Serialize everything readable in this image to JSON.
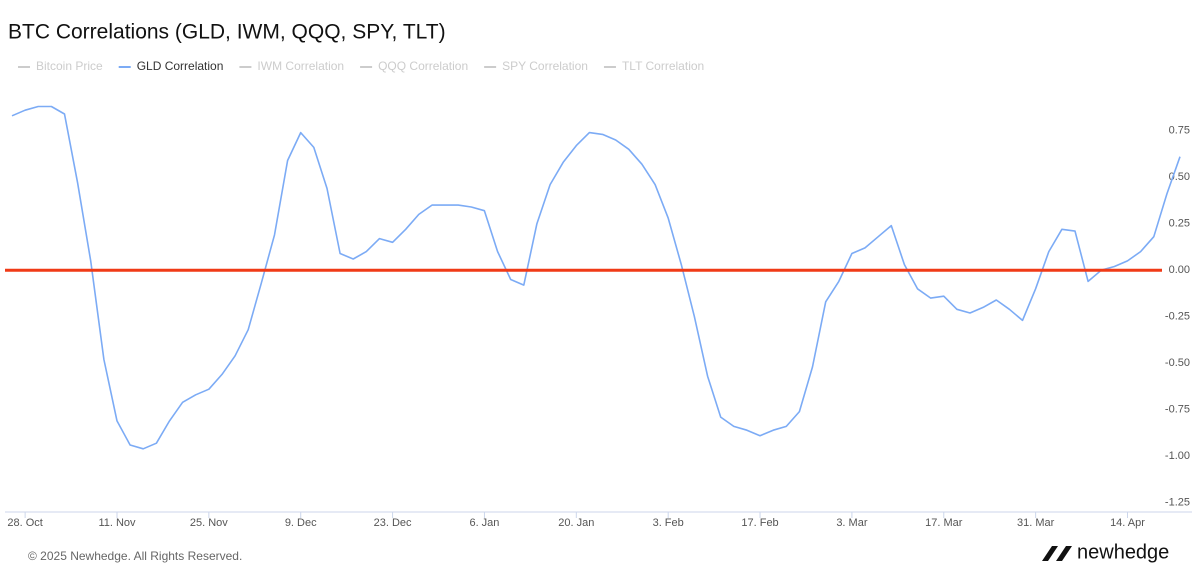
{
  "chart_data": {
    "type": "line",
    "title": "BTC Correlations (GLD, IWM, QQQ, SPY, TLT)",
    "series": [
      {
        "name": "Bitcoin Price",
        "color": "#cccccc",
        "visible": false
      },
      {
        "name": "GLD Correlation",
        "color": "#7cabf5",
        "visible": true,
        "values": [
          0.83,
          0.86,
          0.88,
          0.88,
          0.84,
          0.47,
          0.05,
          -0.48,
          -0.81,
          -0.94,
          -0.96,
          -0.93,
          -0.81,
          -0.71,
          -0.67,
          -0.64,
          -0.56,
          -0.46,
          -0.32,
          -0.07,
          0.19,
          0.59,
          0.74,
          0.66,
          0.44,
          0.09,
          0.06,
          0.1,
          0.17,
          0.15,
          0.22,
          0.3,
          0.35,
          0.35,
          0.35,
          0.34,
          0.32,
          0.1,
          -0.05,
          -0.08,
          0.25,
          0.46,
          0.58,
          0.67,
          0.74,
          0.73,
          0.7,
          0.65,
          0.57,
          0.46,
          0.28,
          0.03,
          -0.25,
          -0.57,
          -0.79,
          -0.84,
          -0.86,
          -0.89,
          -0.86,
          -0.84,
          -0.76,
          -0.52,
          -0.17,
          -0.06,
          0.09,
          0.12,
          0.18,
          0.24,
          0.03,
          -0.1,
          -0.15,
          -0.14,
          -0.21,
          -0.23,
          -0.2,
          -0.16,
          -0.21,
          -0.27,
          -0.1,
          0.1,
          0.22,
          0.21,
          -0.06,
          0.0,
          0.02,
          0.05,
          0.1,
          0.18,
          0.41,
          0.61
        ]
      },
      {
        "name": "IWM Correlation",
        "color": "#cccccc",
        "visible": false
      },
      {
        "name": "QQQ Correlation",
        "color": "#cccccc",
        "visible": false
      },
      {
        "name": "SPY Correlation",
        "color": "#cccccc",
        "visible": false
      },
      {
        "name": "TLT Correlation",
        "color": "#cccccc",
        "visible": false
      }
    ],
    "x": [
      "26. Oct",
      "28. Oct",
      "30. Oct",
      "1. Nov",
      "3. Nov",
      "5. Nov",
      "7. Nov",
      "9. Nov",
      "11. Nov",
      "13. Nov",
      "15. Nov",
      "17. Nov",
      "19. Nov",
      "21. Nov",
      "23. Nov",
      "25. Nov",
      "27. Nov",
      "29. Nov",
      "1. Dec",
      "3. Dec",
      "5. Dec",
      "7. Dec",
      "9. Dec",
      "11. Dec",
      "13. Dec",
      "15. Dec",
      "17. Dec",
      "19. Dec",
      "21. Dec",
      "23. Dec",
      "25. Dec",
      "27. Dec",
      "29. Dec",
      "31. Dec",
      "2. Jan",
      "4. Jan",
      "6. Jan",
      "8. Jan",
      "10. Jan",
      "12. Jan",
      "14. Jan",
      "16. Jan",
      "18. Jan",
      "20. Jan",
      "22. Jan",
      "24. Jan",
      "26. Jan",
      "28. Jan",
      "30. Jan",
      "1. Feb",
      "3. Feb",
      "5. Feb",
      "7. Feb",
      "9. Feb",
      "11. Feb",
      "13. Feb",
      "15. Feb",
      "17. Feb",
      "19. Feb",
      "21. Feb",
      "23. Feb",
      "25. Feb",
      "27. Feb",
      "1. Mar",
      "3. Mar",
      "5. Mar",
      "7. Mar",
      "9. Mar",
      "11. Mar",
      "13. Mar",
      "15. Mar",
      "17. Mar",
      "19. Mar",
      "21. Mar",
      "23. Mar",
      "25. Mar",
      "27. Mar",
      "29. Mar",
      "31. Mar",
      "2. Apr",
      "4. Apr",
      "6. Apr",
      "8. Apr",
      "10. Apr",
      "12. Apr",
      "14. Apr",
      "16. Apr",
      "18. Apr",
      "20. Apr",
      "22. Apr"
    ],
    "xticks": [
      "28. Oct",
      "11. Nov",
      "25. Nov",
      "9. Dec",
      "23. Dec",
      "6. Jan",
      "20. Jan",
      "3. Feb",
      "17. Feb",
      "3. Mar",
      "17. Mar",
      "31. Mar",
      "14. Apr"
    ],
    "ylim": [
      -1.3,
      0.95
    ],
    "yticks": [
      0.75,
      {
        "value": 0.5,
        "label": "0.50"
      },
      0.25,
      {
        "value": 0,
        "label": "0.00"
      },
      -0.25,
      {
        "value": -0.5,
        "label": "-0.50"
      },
      -0.75,
      {
        "value": -1,
        "label": "-1.00"
      },
      -1.25
    ],
    "reference_line": {
      "value": 0,
      "color": "#f03a17"
    },
    "grid": false,
    "legend": "top-left"
  },
  "footer": {
    "copyright": "© 2025 Newhedge. All Rights Reserved.",
    "logo": "newhedge"
  }
}
